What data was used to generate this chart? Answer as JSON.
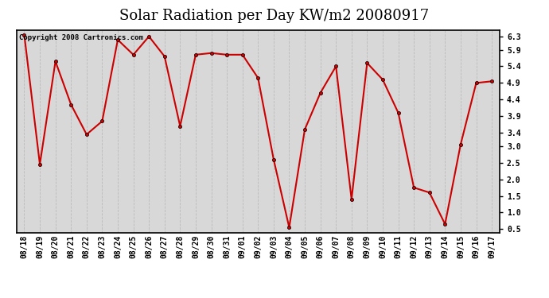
{
  "title": "Solar Radiation per Day KW/m2 20080917",
  "copyright_text": "Copyright 2008 Cartronics.com",
  "dates": [
    "08/18",
    "08/19",
    "08/20",
    "08/21",
    "08/22",
    "08/23",
    "08/24",
    "08/25",
    "08/26",
    "08/27",
    "08/28",
    "08/29",
    "08/30",
    "08/31",
    "09/01",
    "09/02",
    "09/03",
    "09/04",
    "09/05",
    "09/06",
    "09/07",
    "09/08",
    "09/09",
    "09/10",
    "09/11",
    "09/12",
    "09/13",
    "09/14",
    "09/15",
    "09/16",
    "09/17"
  ],
  "values": [
    6.35,
    2.45,
    5.55,
    4.25,
    3.35,
    3.75,
    6.2,
    5.75,
    6.3,
    5.7,
    3.6,
    5.75,
    5.8,
    5.75,
    5.75,
    5.05,
    2.6,
    0.55,
    3.5,
    4.6,
    5.4,
    1.4,
    5.5,
    5.0,
    4.0,
    1.75,
    1.6,
    0.65,
    3.05,
    4.9,
    4.95
  ],
  "line_color": "#cc0000",
  "marker_size": 3,
  "line_width": 1.5,
  "background_color": "#ffffff",
  "plot_bg_color": "#d8d8d8",
  "grid_color": "#bbbbbb",
  "ylim": [
    0.4,
    6.5
  ],
  "yticks": [
    0.5,
    1.0,
    1.5,
    2.0,
    2.5,
    3.0,
    3.4,
    3.9,
    4.4,
    4.9,
    5.4,
    5.9,
    6.3
  ],
  "title_fontsize": 13,
  "tick_fontsize": 7,
  "copyright_fontsize": 6.5
}
